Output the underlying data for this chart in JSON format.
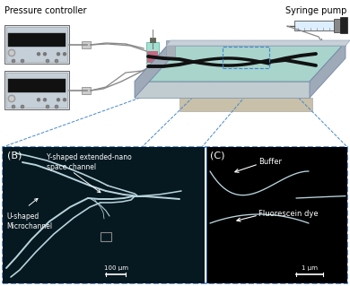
{
  "bg_color": "#ffffff",
  "pressure_controller_label": "Pressure controller",
  "syringe_pump_label": "Syringe pump",
  "panel_B_label": "(B)",
  "panel_B_anno1": "Y-shaped extended-nano\nspace channel",
  "panel_B_anno2": "U-shaped\nMicrochannel",
  "panel_B_scale": "100 μm",
  "panel_C_label": "(C)",
  "panel_C_anno1": "Buffer",
  "panel_C_anno2": "Fluorescein dye",
  "panel_C_scale": "1 μm",
  "dashed_color": "#4488cc",
  "channel_color": "#b8d4dc",
  "chip_surface": "#9ecfca",
  "chip_edge": "#8899aa"
}
